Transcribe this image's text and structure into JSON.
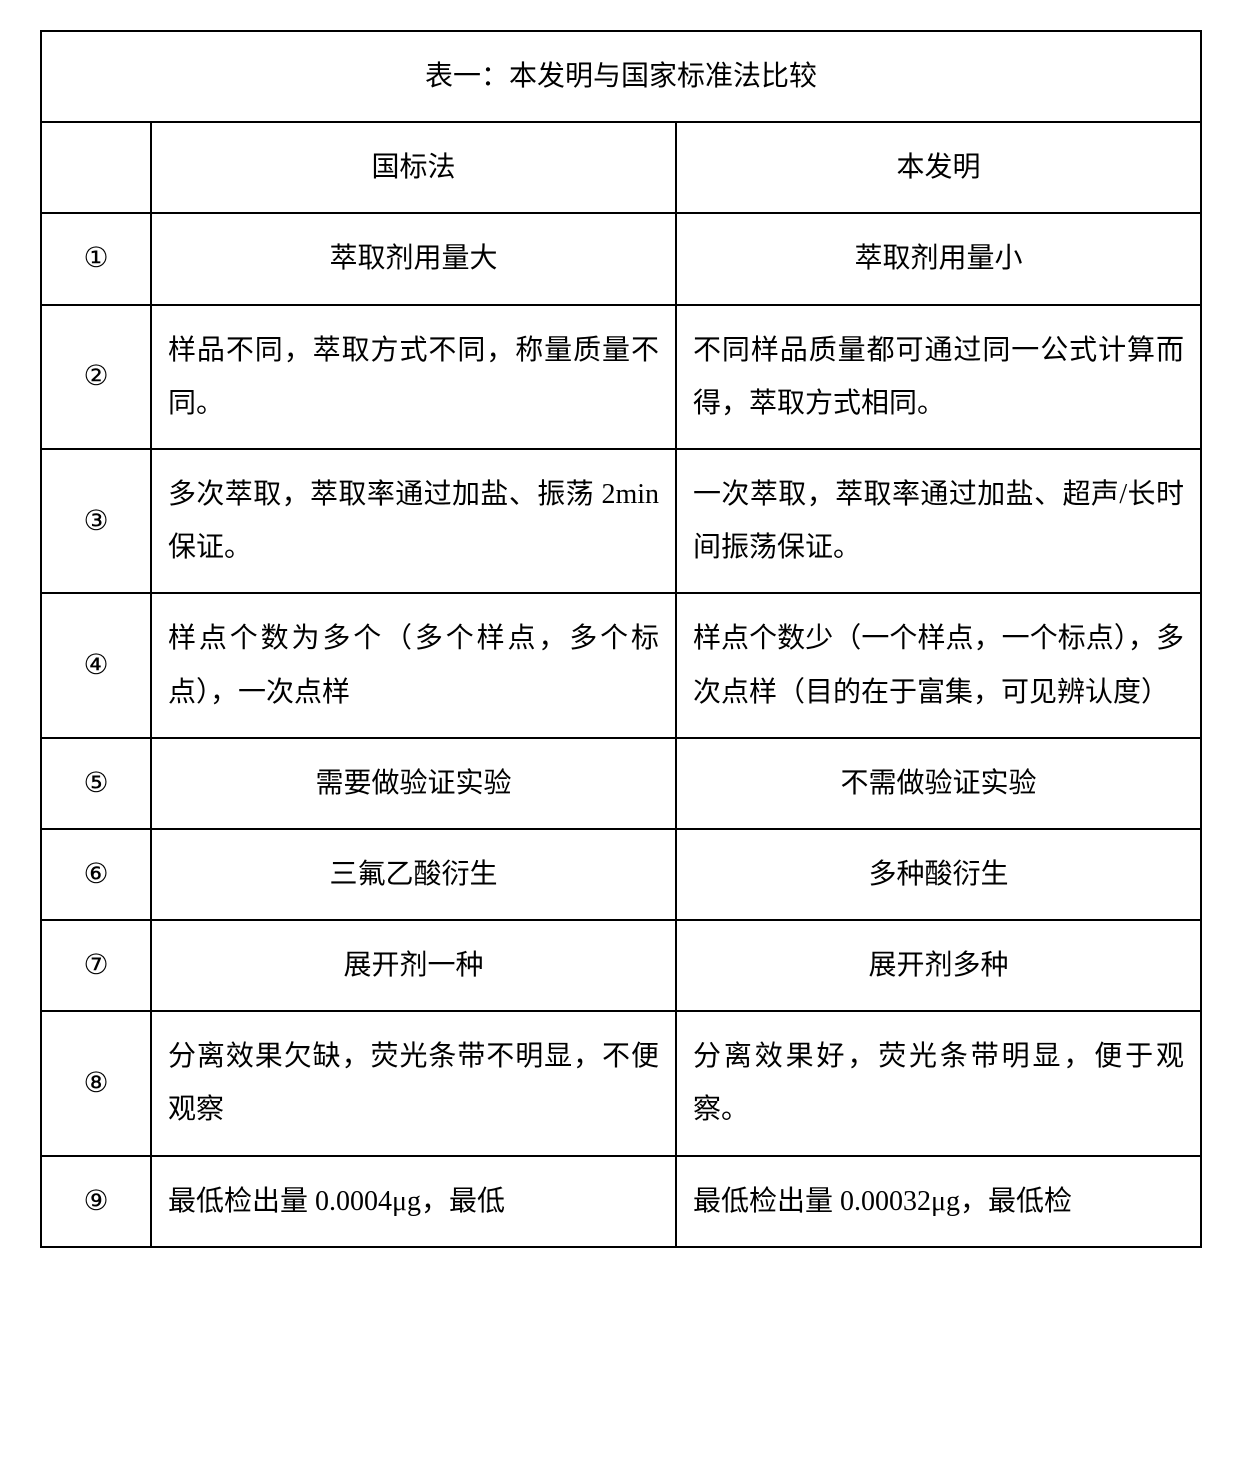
{
  "table": {
    "caption": "表一：本发明与国家标准法比较",
    "headers": {
      "index": "",
      "colA": "国标法",
      "colB": "本发明"
    },
    "rows": [
      {
        "n": "①",
        "a": "萃取剂用量大",
        "b": "萃取剂用量小",
        "a_center": true,
        "b_center": true
      },
      {
        "n": "②",
        "a": "样品不同，萃取方式不同，称量质量不同。",
        "b": "不同样品质量都可通过同一公式计算而得，萃取方式相同。",
        "a_center": false,
        "b_center": false
      },
      {
        "n": "③",
        "a": "多次萃取，萃取率通过加盐、振荡 2min 保证。",
        "b": "一次萃取，萃取率通过加盐、超声/长时间振荡保证。",
        "a_center": false,
        "b_center": false
      },
      {
        "n": "④",
        "a": "样点个数为多个（多个样点，多个标点），一次点样",
        "b": "样点个数少（一个样点，一个标点），多次点样（目的在于富集，可见辨认度）",
        "a_center": false,
        "b_center": false
      },
      {
        "n": "⑤",
        "a": "需要做验证实验",
        "b": "不需做验证实验",
        "a_center": true,
        "b_center": true
      },
      {
        "n": "⑥",
        "a": "三氟乙酸衍生",
        "b": "多种酸衍生",
        "a_center": true,
        "b_center": true
      },
      {
        "n": "⑦",
        "a": "展开剂一种",
        "b": "展开剂多种",
        "a_center": true,
        "b_center": true
      },
      {
        "n": "⑧",
        "a": "分离效果欠缺，荧光条带不明显，不便观察",
        "b": "分离效果好，荧光条带明显，便于观察。",
        "a_center": false,
        "b_center": false
      },
      {
        "n": "⑨",
        "a": "最低检出量 0.0004μg，最低",
        "b": "最低检出量 0.00032μg，最低检",
        "a_center": false,
        "b_center": false
      }
    ]
  }
}
